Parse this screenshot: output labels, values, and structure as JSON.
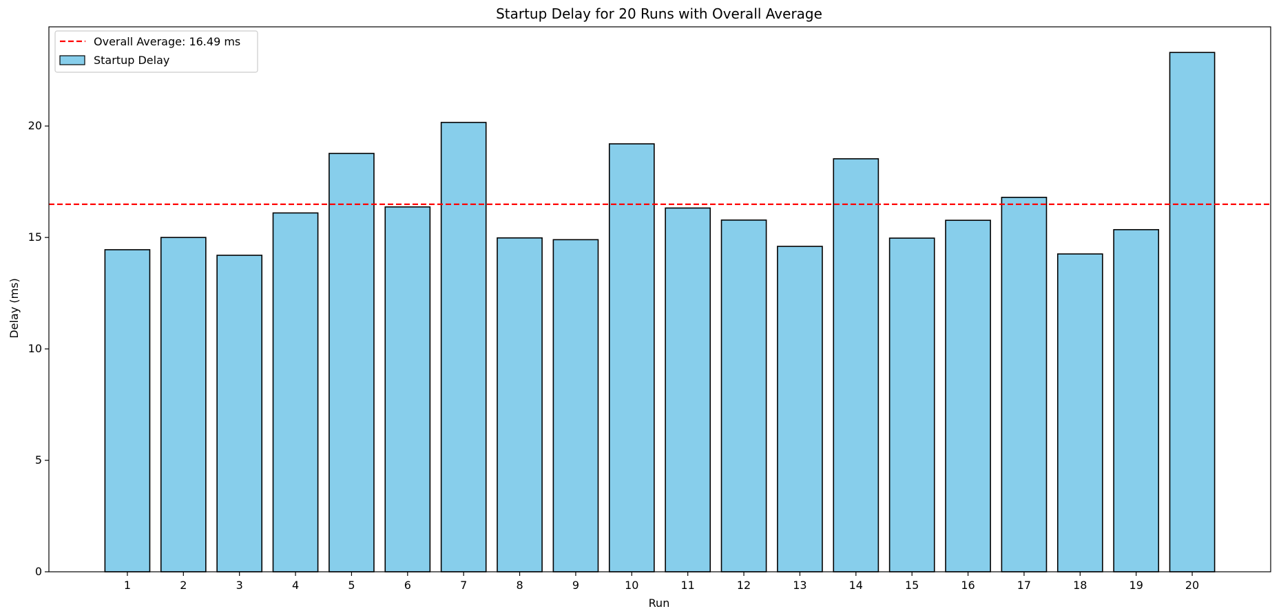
{
  "chart_data": {
    "type": "bar",
    "title": "Startup Delay for 20 Runs with Overall Average",
    "xlabel": "Run",
    "ylabel": "Delay (ms)",
    "categories": [
      "1",
      "2",
      "3",
      "4",
      "5",
      "6",
      "7",
      "8",
      "9",
      "10",
      "11",
      "12",
      "13",
      "14",
      "15",
      "16",
      "17",
      "18",
      "19",
      "20"
    ],
    "series": [
      {
        "name": "Startup Delay",
        "values": [
          14.45,
          15.0,
          14.2,
          16.1,
          18.77,
          16.37,
          20.16,
          14.98,
          14.9,
          19.2,
          16.32,
          15.78,
          14.6,
          18.53,
          14.97,
          15.77,
          16.8,
          14.26,
          15.35,
          23.3
        ]
      }
    ],
    "average": {
      "label": "Overall Average: 16.49 ms",
      "value": 16.49
    },
    "ylim": [
      0,
      24.45
    ],
    "yticks": [
      0,
      5,
      10,
      15,
      20
    ],
    "grid": false,
    "legend_position": "top-left",
    "colors": {
      "bar_fill": "#87CEEB",
      "bar_edge": "#000000",
      "average_line": "#FF0000"
    }
  }
}
